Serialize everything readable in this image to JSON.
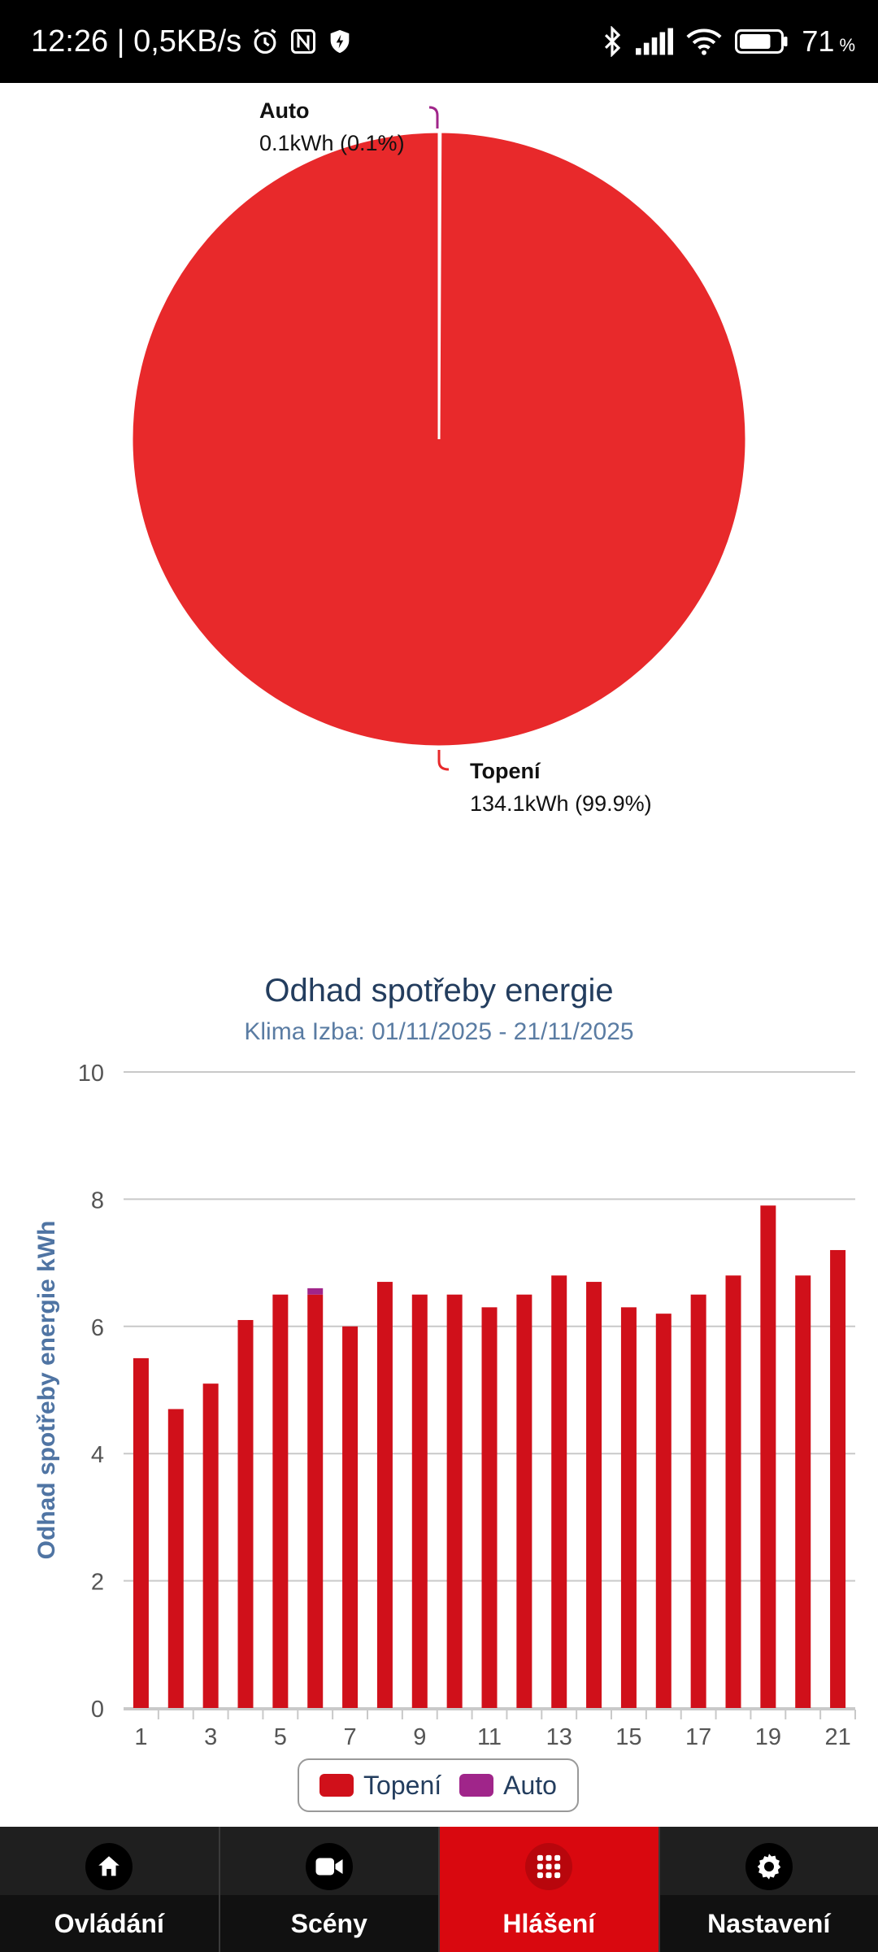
{
  "status_bar": {
    "time": "12:26 | 0,5KB/s",
    "battery": "71",
    "battery_unit": "%",
    "icons": [
      "alarm-icon",
      "nfc-icon",
      "shield-icon",
      "bluetooth-icon",
      "signal-icon",
      "wifi-icon",
      "battery-icon"
    ]
  },
  "pie_chart": {
    "slices": [
      {
        "name": "Auto",
        "detail": "0.1kWh (0.1%)",
        "value": 0.1,
        "color": "#a0258a"
      },
      {
        "name": "Topení",
        "detail": "134.1kWh (99.9%)",
        "value": 134.1,
        "color": "#e8292b"
      }
    ]
  },
  "chart_data": {
    "type": "bar",
    "title": "Odhad spotřeby energie",
    "subtitle": "Klima Izba: 01/11/2025 - 21/11/2025",
    "ylabel": "Odhad spotřeby energie kWh",
    "xlabel": "",
    "ylim": [
      0,
      10
    ],
    "y_ticks": [
      "0",
      "2",
      "4",
      "6",
      "8",
      "10"
    ],
    "x_ticks": [
      "1",
      "3",
      "5",
      "7",
      "9",
      "11",
      "13",
      "15",
      "17",
      "19",
      "21"
    ],
    "categories": [
      "1",
      "2",
      "3",
      "4",
      "5",
      "6",
      "7",
      "8",
      "9",
      "10",
      "11",
      "12",
      "13",
      "14",
      "15",
      "16",
      "17",
      "18",
      "19",
      "20",
      "21"
    ],
    "stacked": true,
    "series": [
      {
        "name": "Topení",
        "color": "#d0101a",
        "values": [
          5.5,
          4.7,
          5.1,
          6.1,
          6.5,
          6.5,
          6.0,
          6.7,
          6.5,
          6.5,
          6.3,
          6.5,
          6.8,
          6.7,
          6.3,
          6.2,
          6.5,
          6.8,
          7.9,
          6.8,
          7.2
        ]
      },
      {
        "name": "Auto",
        "color": "#a0258a",
        "values": [
          0,
          0,
          0,
          0,
          0,
          0.1,
          0,
          0,
          0,
          0,
          0,
          0,
          0,
          0,
          0,
          0,
          0,
          0,
          0,
          0,
          0
        ]
      }
    ],
    "legend": [
      "Topení",
      "Auto"
    ]
  },
  "nav": {
    "items": [
      {
        "label": "Ovládání",
        "icon": "home-icon"
      },
      {
        "label": "Scény",
        "icon": "video-camera-icon"
      },
      {
        "label": "Hlášení",
        "icon": "grid-icon"
      },
      {
        "label": "Nastavení",
        "icon": "gear-icon"
      }
    ],
    "active_index": 2
  }
}
